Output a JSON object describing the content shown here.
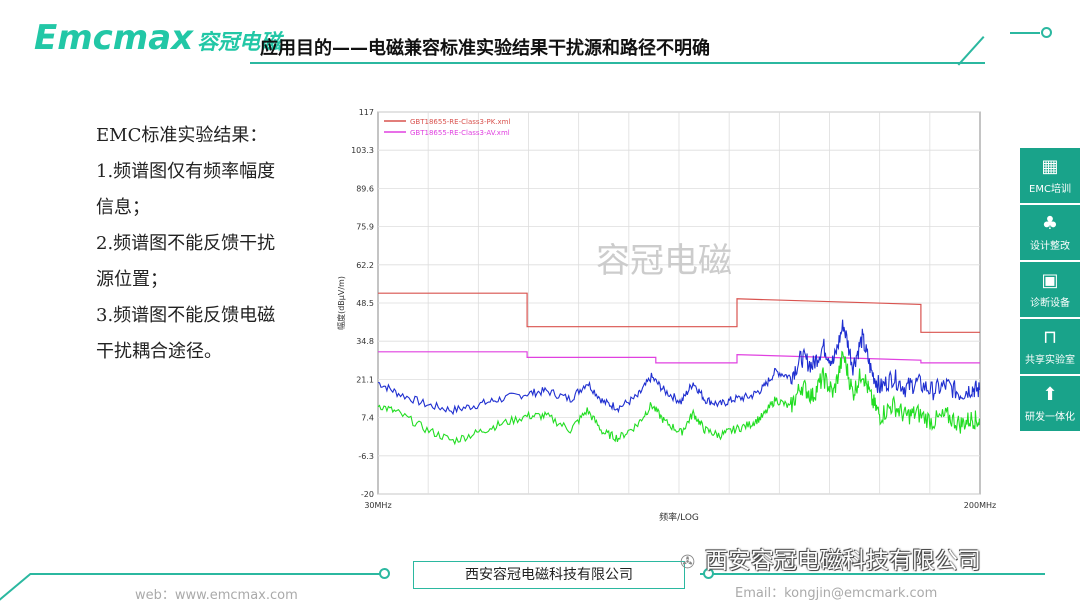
{
  "header": {
    "logo_text": "Emcmax",
    "logo_cn": "容冠电磁",
    "title": "应用目的——电磁兼容标准实验结果干扰源和路径不明确"
  },
  "content": {
    "lines": [
      "EMC标准实验结果：",
      "1.频谱图仅有频率幅度",
      "信息；",
      "2.频谱图不能反馈干扰",
      "源位置；",
      "3.频谱图不能反馈电磁",
      "干扰耦合途径。"
    ]
  },
  "chart_data": {
    "type": "line",
    "watermark": "容冠电磁",
    "xlabel": "频率/LOG",
    "ylabel": "幅度(dBμV/m)",
    "x_scale": "log",
    "x_tick_labels": [
      "30MHz",
      "200MHz"
    ],
    "xlim_MHz": [
      30,
      200
    ],
    "ylim": [
      -20,
      117
    ],
    "y_ticks": [
      117,
      103.3,
      89.6,
      75.9,
      62.2,
      48.5,
      34.8,
      21.1,
      7.4,
      -6.3,
      -20
    ],
    "grid": true,
    "legend_position": "top-left",
    "series": [
      {
        "name": "GBT18655-RE-Class3-PK.xml",
        "color": "#d9534f",
        "kind": "limit",
        "points": [
          [
            30,
            52
          ],
          [
            48,
            52
          ],
          [
            48,
            40
          ],
          [
            93,
            40
          ],
          [
            93,
            50
          ],
          [
            166,
            48
          ],
          [
            166,
            38
          ],
          [
            200,
            38
          ]
        ]
      },
      {
        "name": "GBT18655-RE-Class3-AV.xml",
        "color": "#e040e0",
        "kind": "limit",
        "points": [
          [
            30,
            31
          ],
          [
            48,
            31
          ],
          [
            48,
            29
          ],
          [
            72,
            29
          ],
          [
            72,
            27
          ],
          [
            93,
            27
          ],
          [
            93,
            30
          ],
          [
            166,
            28
          ],
          [
            166,
            27
          ],
          [
            200,
            27
          ]
        ]
      },
      {
        "name": "",
        "color": "#1f2fd0",
        "kind": "measured",
        "points": [
          [
            30,
            20
          ],
          [
            32,
            16
          ],
          [
            35,
            12
          ],
          [
            38,
            10
          ],
          [
            41,
            12
          ],
          [
            44,
            14
          ],
          [
            48,
            16
          ],
          [
            51,
            17
          ],
          [
            55,
            14
          ],
          [
            58,
            20
          ],
          [
            61,
            13
          ],
          [
            64,
            11
          ],
          [
            68,
            15
          ],
          [
            71,
            22
          ],
          [
            74,
            17
          ],
          [
            78,
            13
          ],
          [
            81,
            20
          ],
          [
            84,
            14
          ],
          [
            88,
            12
          ],
          [
            92,
            14
          ],
          [
            97,
            15
          ],
          [
            101,
            18
          ],
          [
            105,
            24
          ],
          [
            110,
            22
          ],
          [
            114,
            29
          ],
          [
            118,
            26
          ],
          [
            122,
            33
          ],
          [
            126,
            27
          ],
          [
            130,
            41
          ],
          [
            134,
            26
          ],
          [
            138,
            36
          ],
          [
            142,
            24
          ],
          [
            146,
            18
          ],
          [
            152,
            22
          ],
          [
            158,
            18
          ],
          [
            164,
            20
          ],
          [
            172,
            17
          ],
          [
            180,
            19
          ],
          [
            188,
            16
          ],
          [
            195,
            18
          ],
          [
            200,
            17
          ]
        ]
      },
      {
        "name": "",
        "color": "#22dd22",
        "kind": "measured",
        "points": [
          [
            30,
            12
          ],
          [
            32,
            9
          ],
          [
            35,
            3
          ],
          [
            38,
            -1
          ],
          [
            41,
            2
          ],
          [
            44,
            5
          ],
          [
            48,
            8
          ],
          [
            51,
            8
          ],
          [
            55,
            3
          ],
          [
            58,
            10
          ],
          [
            61,
            2
          ],
          [
            64,
            0
          ],
          [
            68,
            5
          ],
          [
            71,
            12
          ],
          [
            74,
            6
          ],
          [
            78,
            2
          ],
          [
            81,
            9
          ],
          [
            84,
            3
          ],
          [
            88,
            1
          ],
          [
            92,
            3
          ],
          [
            97,
            5
          ],
          [
            101,
            8
          ],
          [
            105,
            14
          ],
          [
            110,
            11
          ],
          [
            114,
            19
          ],
          [
            118,
            15
          ],
          [
            122,
            22
          ],
          [
            126,
            16
          ],
          [
            130,
            30
          ],
          [
            134,
            16
          ],
          [
            138,
            24
          ],
          [
            142,
            14
          ],
          [
            146,
            8
          ],
          [
            152,
            12
          ],
          [
            158,
            8
          ],
          [
            164,
            9
          ],
          [
            172,
            6
          ],
          [
            180,
            8
          ],
          [
            188,
            5
          ],
          [
            195,
            7
          ],
          [
            200,
            6
          ]
        ]
      }
    ]
  },
  "side_nav": [
    {
      "label": "EMC培训",
      "icon": "monitor-icon",
      "glyph": "▦"
    },
    {
      "label": "设计整改",
      "icon": "network-icon",
      "glyph": "♣"
    },
    {
      "label": "诊断设备",
      "icon": "chip-icon",
      "glyph": "▣"
    },
    {
      "label": "共享实验室",
      "icon": "signal-icon",
      "glyph": "⊓"
    },
    {
      "label": "研发一体化",
      "icon": "arrow-up-icon",
      "glyph": "⬆"
    }
  ],
  "footer": {
    "company": "西安容冠电磁科技有限公司",
    "web": "web：www.emcmax.com",
    "email": "Email：kongjin@emcmark.com",
    "wechat_mark": "西安容冠电磁科技有限公司"
  },
  "colors": {
    "accent": "#2bb8a0",
    "side_panel": "#19a38a",
    "logo": "#22c7a6"
  }
}
